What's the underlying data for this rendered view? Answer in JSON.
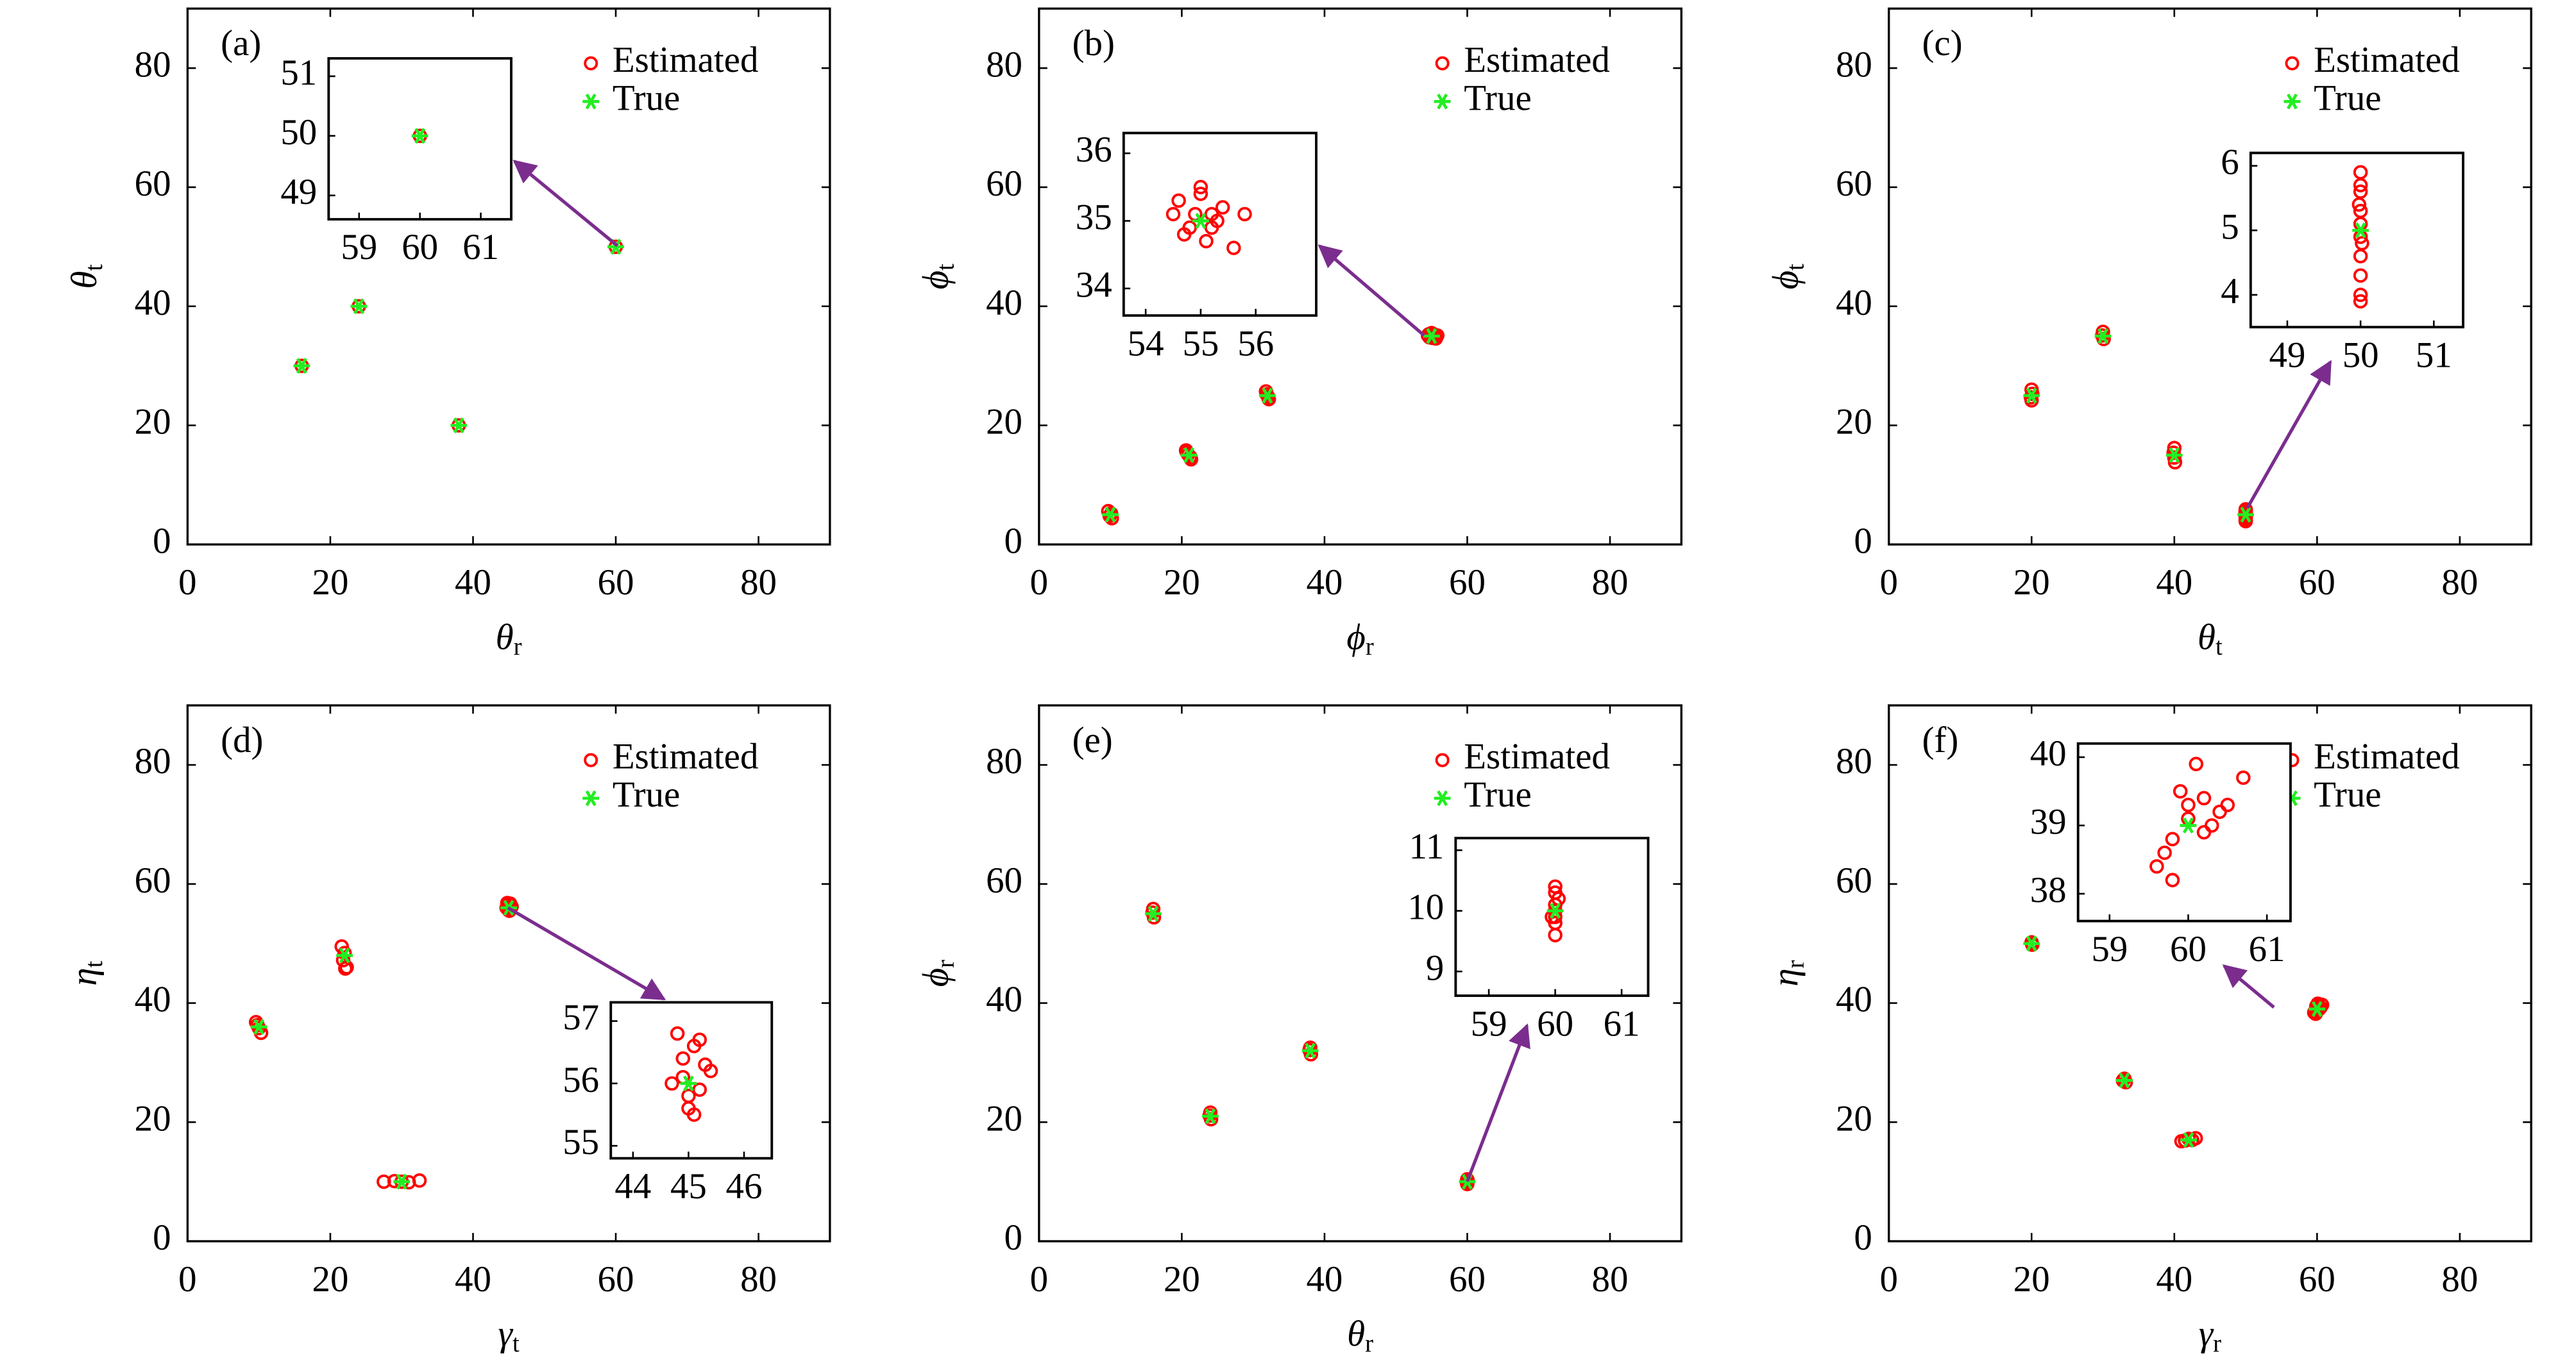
{
  "chart_data": [
    {
      "type": "scatter",
      "panel_label": "(a)",
      "xlabel": {
        "symbol": "θ",
        "sub": "r"
      },
      "ylabel": {
        "symbol": "θ",
        "sub": "t"
      },
      "xlim": [
        0,
        90
      ],
      "ylim": [
        0,
        90
      ],
      "xticks": [
        0,
        20,
        40,
        60,
        80
      ],
      "yticks": [
        0,
        20,
        40,
        60,
        80
      ],
      "series": [
        {
          "name": "Estimated",
          "color": "#ff0000",
          "marker": "circle",
          "x": [
            16,
            24,
            38,
            60
          ],
          "y": [
            30,
            40,
            20,
            50
          ]
        },
        {
          "name": "True",
          "color": "#22ee22",
          "marker": "asterisk",
          "x": [
            16,
            24,
            38,
            60
          ],
          "y": [
            30,
            40,
            20,
            50
          ]
        }
      ],
      "inset": {
        "xlim": [
          58.5,
          61.5
        ],
        "ylim": [
          48.6,
          51.3
        ],
        "xticks": [
          59,
          60,
          61
        ],
        "yticks": [
          49,
          50,
          51
        ]
      }
    },
    {
      "type": "scatter",
      "panel_label": "(b)",
      "xlabel": {
        "symbol": "ϕ",
        "sub": "r"
      },
      "ylabel": {
        "symbol": "ϕ",
        "sub": "t"
      },
      "xlim": [
        0,
        90
      ],
      "ylim": [
        0,
        90
      ],
      "xticks": [
        0,
        20,
        40,
        60,
        80
      ],
      "yticks": [
        0,
        20,
        40,
        60,
        80
      ],
      "series": [
        {
          "name": "Estimated",
          "color": "#ff0000",
          "marker": "circle",
          "x": [
            9.7,
            10.2,
            10.1,
            9.9,
            20.6,
            21.3,
            20.9,
            21.2,
            20.7,
            31.8,
            32.2,
            31.9,
            32.1,
            54.6,
            54.8,
            55.0,
            55.2,
            55.4,
            54.7,
            55.1,
            55.3,
            54.9,
            55.8,
            55.6,
            54.5,
            55.0,
            55.2
          ],
          "y": [
            5.6,
            4.4,
            5.2,
            4.8,
            15.8,
            14.3,
            15.1,
            14.7,
            15.5,
            25.7,
            24.4,
            25.2,
            24.8,
            35.3,
            34.9,
            35.4,
            35.1,
            35.2,
            34.8,
            34.7,
            35.0,
            35.1,
            35.1,
            34.6,
            35.1,
            35.5,
            34.9
          ]
        },
        {
          "name": "True",
          "color": "#22ee22",
          "marker": "asterisk",
          "x": [
            10,
            21,
            32,
            55
          ],
          "y": [
            5,
            15,
            25,
            35
          ]
        }
      ],
      "inset": {
        "xlim": [
          53.6,
          57.1
        ],
        "ylim": [
          33.6,
          36.3
        ],
        "xticks": [
          54,
          55,
          56
        ],
        "yticks": [
          34,
          35,
          36
        ]
      }
    },
    {
      "type": "scatter",
      "panel_label": "(c)",
      "xlabel": {
        "symbol": "θ",
        "sub": "t"
      },
      "ylabel": {
        "symbol": "ϕ",
        "sub": "t"
      },
      "xlim": [
        0,
        90
      ],
      "ylim": [
        0,
        90
      ],
      "xticks": [
        0,
        20,
        40,
        60,
        80
      ],
      "yticks": [
        0,
        20,
        40,
        60,
        80
      ],
      "series": [
        {
          "name": "Estimated",
          "color": "#ff0000",
          "marker": "circle",
          "x": [
            20,
            20,
            20.1,
            19.9,
            30,
            30.1,
            29.9,
            40,
            40.1,
            39.9,
            40,
            50,
            50,
            50,
            50,
            50,
            50,
            50,
            50,
            49.98,
            50.02,
            50,
            50
          ],
          "y": [
            26,
            24.2,
            25.3,
            24.7,
            35.7,
            34.5,
            35.1,
            16.2,
            13.8,
            15.4,
            14.6,
            5.9,
            5.6,
            5.3,
            5.1,
            4.9,
            4.6,
            4.3,
            4.0,
            5.4,
            4.8,
            3.9,
            5.7
          ]
        },
        {
          "name": "True",
          "color": "#22ee22",
          "marker": "asterisk",
          "x": [
            20,
            30,
            40,
            50
          ],
          "y": [
            25,
            35,
            15,
            5
          ]
        }
      ],
      "inset": {
        "xlim": [
          48.5,
          51.4
        ],
        "ylim": [
          3.5,
          6.2
        ],
        "xticks": [
          49,
          50,
          51
        ],
        "yticks": [
          4,
          5,
          6
        ]
      }
    },
    {
      "type": "scatter",
      "panel_label": "(d)",
      "xlabel": {
        "symbol": "γ",
        "sub": "t"
      },
      "ylabel": {
        "symbol": "η",
        "sub": "t"
      },
      "xlim": [
        0,
        90
      ],
      "ylim": [
        0,
        90
      ],
      "xticks": [
        0,
        20,
        40,
        60,
        80
      ],
      "yticks": [
        0,
        20,
        40,
        60,
        80
      ],
      "series": [
        {
          "name": "Estimated",
          "color": "#ff0000",
          "marker": "circle",
          "x": [
            9.6,
            10.3,
            10.0,
            9.8,
            21.6,
            22.3,
            22.0,
            21.8,
            22.1,
            27.5,
            29,
            31,
            32.5,
            30,
            44.8,
            45.1,
            45.3,
            44.9,
            45.2,
            45.0,
            44.7,
            45.4,
            45.1,
            44.9,
            45.0,
            45.2
          ],
          "y": [
            36.8,
            35.0,
            35.8,
            36.3,
            49.5,
            46.0,
            48.4,
            47.2,
            45.8,
            10,
            10.1,
            9.9,
            10.2,
            10,
            56.8,
            56.6,
            56.3,
            56.1,
            55.9,
            55.6,
            56.0,
            56.2,
            55.5,
            56.4,
            55.8,
            56.7
          ]
        },
        {
          "name": "True",
          "color": "#22ee22",
          "marker": "asterisk",
          "x": [
            10,
            22,
            30,
            45
          ],
          "y": [
            36,
            48,
            10,
            56
          ]
        }
      ],
      "inset": {
        "xlim": [
          43.6,
          46.5
        ],
        "ylim": [
          54.8,
          57.3
        ],
        "xticks": [
          44,
          45,
          46
        ],
        "yticks": [
          55,
          56,
          57
        ]
      }
    },
    {
      "type": "scatter",
      "panel_label": "(e)",
      "xlabel": {
        "symbol": "θ",
        "sub": "r"
      },
      "ylabel": {
        "symbol": "ϕ",
        "sub": "r"
      },
      "xlim": [
        0,
        90
      ],
      "ylim": [
        0,
        90
      ],
      "xticks": [
        0,
        20,
        40,
        60,
        80
      ],
      "yticks": [
        0,
        20,
        40,
        60,
        80
      ],
      "series": [
        {
          "name": "Estimated",
          "color": "#ff0000",
          "marker": "circle",
          "x": [
            16,
            16.1,
            15.9,
            24,
            24.1,
            23.9,
            38,
            38.1,
            37.9,
            60,
            60,
            60,
            60,
            60,
            60,
            60.05,
            59.95,
            60
          ],
          "y": [
            55.8,
            54.4,
            55.2,
            21.6,
            20.5,
            21.1,
            32.5,
            31.4,
            32.1,
            10.4,
            10.3,
            10.1,
            9.9,
            9.8,
            9.6,
            10.2,
            9.9,
            10.0
          ]
        },
        {
          "name": "True",
          "color": "#22ee22",
          "marker": "asterisk",
          "x": [
            16,
            24,
            38,
            60
          ],
          "y": [
            55,
            21,
            32,
            10
          ]
        }
      ],
      "inset": {
        "xlim": [
          58.5,
          61.4
        ],
        "ylim": [
          8.6,
          11.2
        ],
        "xticks": [
          59,
          60,
          61
        ],
        "yticks": [
          9,
          10,
          11
        ]
      }
    },
    {
      "type": "scatter",
      "panel_label": "(f)",
      "xlabel": {
        "symbol": "γ",
        "sub": "r"
      },
      "ylabel": {
        "symbol": "η",
        "sub": "r"
      },
      "xlim": [
        0,
        90
      ],
      "ylim": [
        0,
        90
      ],
      "xticks": [
        0,
        20,
        40,
        60,
        80
      ],
      "yticks": [
        0,
        20,
        40,
        60,
        80
      ],
      "series": [
        {
          "name": "Estimated",
          "color": "#ff0000",
          "marker": "circle",
          "x": [
            20,
            20.1,
            33,
            33.2,
            32.8,
            41,
            42,
            43,
            41.5,
            42.5,
            59.6,
            59.8,
            60.0,
            60.2,
            60.4,
            60.7,
            59.7,
            59.9,
            60.1,
            60.3,
            60.5,
            59.8,
            60.2,
            60.0
          ],
          "y": [
            50.2,
            49.8,
            27.3,
            26.7,
            27,
            16.8,
            17.2,
            17.3,
            16.9,
            17,
            38.4,
            38.8,
            39.1,
            39.4,
            39.2,
            39.7,
            38.6,
            39.5,
            39.9,
            39.0,
            39.3,
            38.2,
            38.9,
            39.3
          ]
        },
        {
          "name": "True",
          "color": "#22ee22",
          "marker": "asterisk",
          "x": [
            20,
            33,
            42,
            60
          ],
          "y": [
            50,
            27,
            17,
            39
          ]
        }
      ],
      "inset": {
        "xlim": [
          58.6,
          61.3
        ],
        "ylim": [
          37.6,
          40.2
        ],
        "xticks": [
          59,
          60,
          61
        ],
        "yticks": [
          38,
          39,
          40
        ]
      }
    }
  ]
}
